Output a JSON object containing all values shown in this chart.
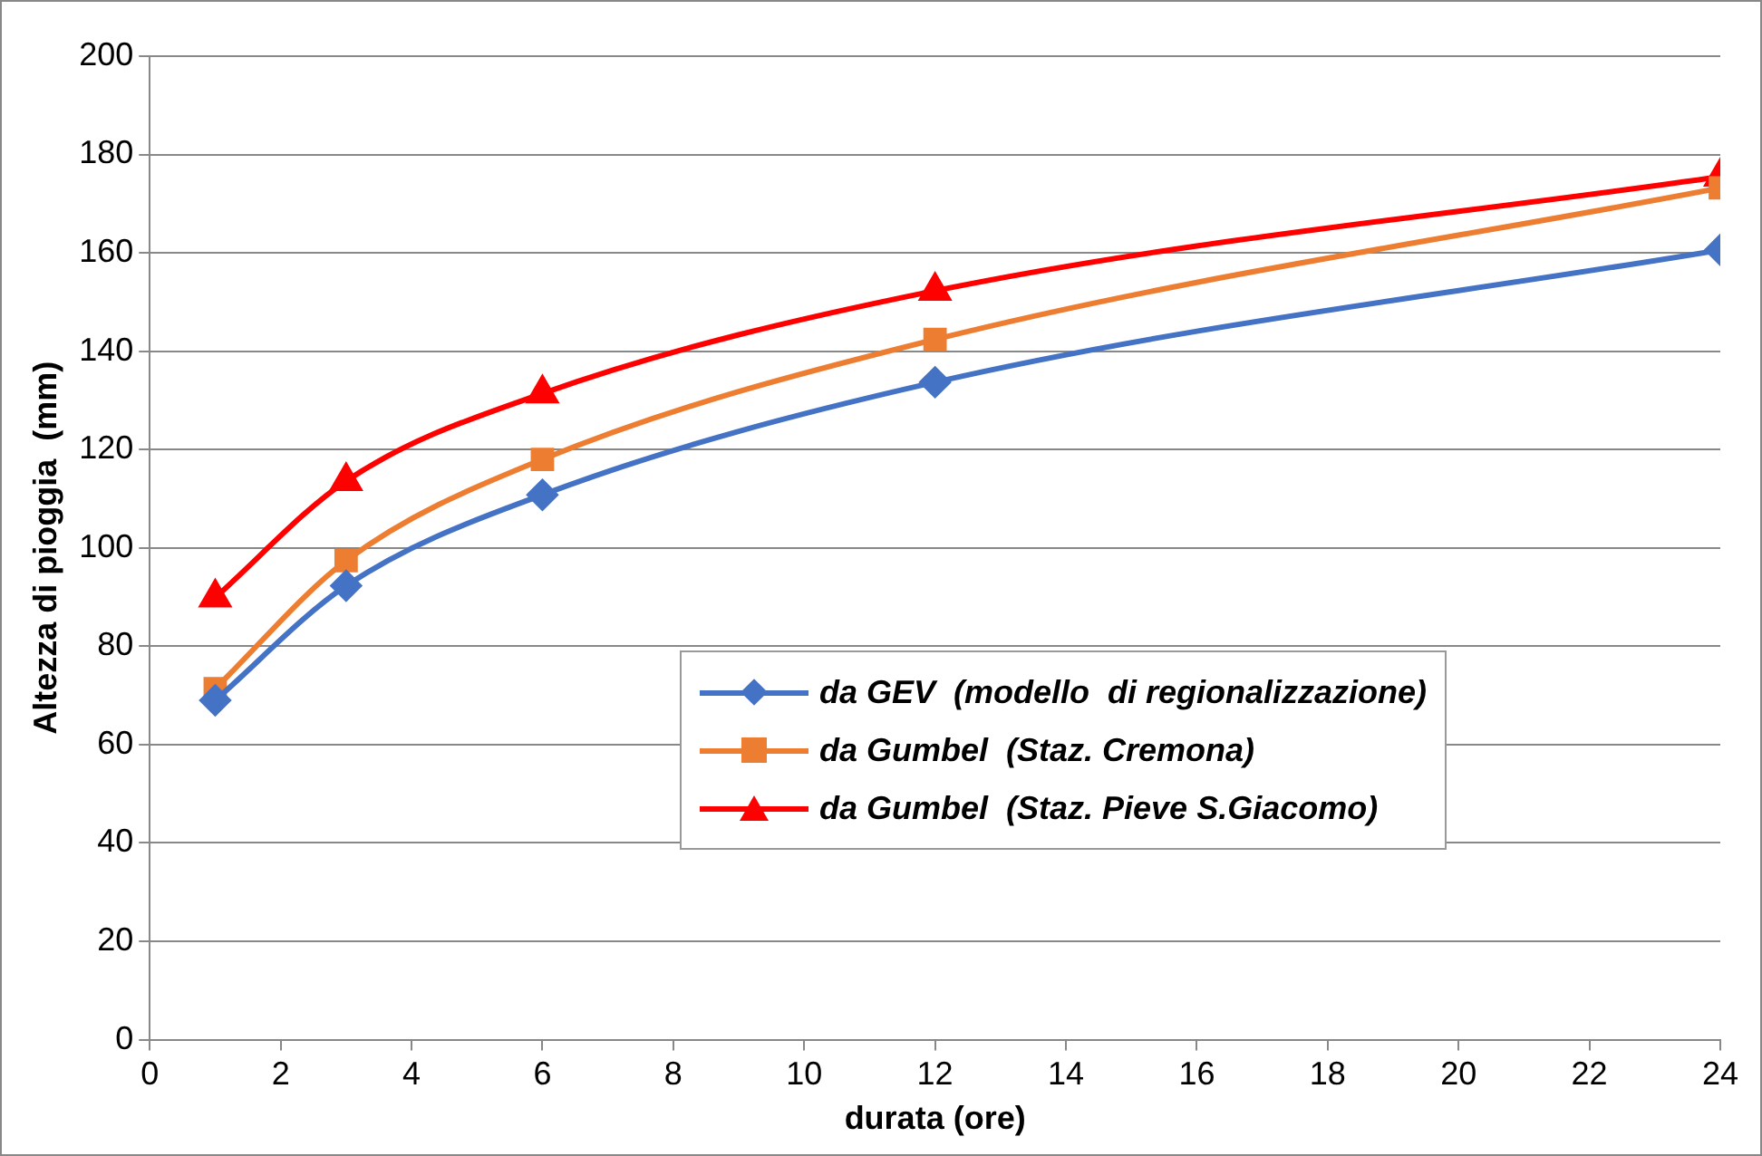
{
  "chart_data": {
    "type": "line",
    "xlabel": "durata (ore)",
    "ylabel": "Altezza di pioggia  (mm)",
    "x": [
      1,
      3,
      6,
      12,
      24
    ],
    "xlim": [
      0,
      24
    ],
    "xticks": [
      0,
      2,
      4,
      6,
      8,
      10,
      12,
      14,
      16,
      18,
      20,
      22,
      24
    ],
    "ylim": [
      0,
      200
    ],
    "yticks": [
      0,
      20,
      40,
      60,
      80,
      100,
      120,
      140,
      160,
      180,
      200
    ],
    "grid": "y",
    "legend": "bottom right",
    "series": [
      {
        "name": "da GEV  (modello  di regionalizzazione)",
        "color": "#4472c4",
        "marker": "diamond",
        "values": [
          69,
          92.3,
          110.8,
          133.7,
          160.6
        ]
      },
      {
        "name": "da Gumbel  (Staz. Cremona)",
        "color": "#ed7d31",
        "marker": "square",
        "values": [
          71.4,
          97.4,
          118,
          142.4,
          173.2
        ]
      },
      {
        "name": "da Gumbel  (Staz. Pieve S.Giacomo)",
        "color": "#ff0000",
        "marker": "triangle",
        "values": [
          89.9,
          113.6,
          131.4,
          152.3,
          175.5
        ]
      }
    ]
  }
}
